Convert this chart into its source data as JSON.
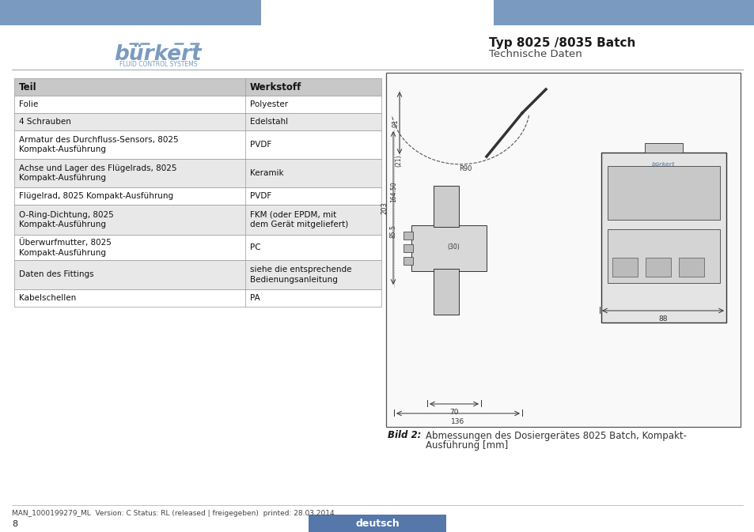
{
  "title_bold": "Typ 8025 /8035 Batch",
  "title_sub": "Technische Daten",
  "header_color": "#7a9bbf",
  "bg_color": "#ffffff",
  "table_header_bg": "#c8c8c8",
  "table_alt_bg": "#e8e8e8",
  "table_white_bg": "#ffffff",
  "table_col1_header": "Teil",
  "table_col2_header": "Werkstoff",
  "table_rows": [
    [
      "Folie",
      "Polyester"
    ],
    [
      "4 Schrauben",
      "Edelstahl"
    ],
    [
      "Armatur des Durchfluss-Sensors, 8025\nKompakt-Ausführung",
      "PVDF"
    ],
    [
      "Achse und Lager des Flügelrads, 8025\nKompakt-Ausführung",
      "Keramik"
    ],
    [
      "Flügelrad, 8025 Kompakt-Ausführung",
      "PVDF"
    ],
    [
      "O-Ring-Dichtung, 8025\nKompakt-Ausführung",
      "FKM (oder EPDM, mit\ndem Gerät mitgeliefert)"
    ],
    [
      "Überwurfmutter, 8025\nKompakt-Ausführung",
      "PC"
    ],
    [
      "Daten des Fittings",
      "siehe die entsprechende\nBedienungsanleitung"
    ],
    [
      "Kabelschellen",
      "PA"
    ]
  ],
  "caption_bold": "Bild 2:",
  "caption_text1": "Abmessungen des Dosiergerätes 8025 Batch, Kompakt-",
  "caption_text2": "Ausführung [mm]",
  "footer_text": "MAN_1000199279_ML  Version: C Status: RL (released | freigegeben)  printed: 28.03.2014",
  "page_num": "8",
  "lang_button_text": "deutsch",
  "lang_button_color": "#5577aa",
  "sep_line_color": "#aaaaaa",
  "draw_border_color": "#555555"
}
